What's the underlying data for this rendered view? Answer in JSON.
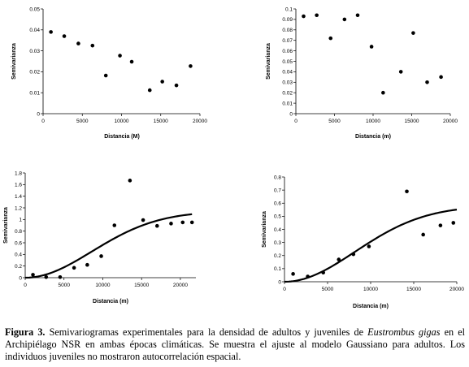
{
  "chart_data": [
    {
      "type": "scatter",
      "xlabel": "Distancia (M)",
      "ylabel": "Semivarianza",
      "xlim": [
        0,
        20000
      ],
      "ylim": [
        0,
        0.05
      ],
      "xticks": [
        "0",
        "5000",
        "10000",
        "15000",
        "20000"
      ],
      "yticks": [
        "0",
        "0.01",
        "0.02",
        "0.03",
        "0.04",
        "0.05"
      ],
      "points": [
        [
          1000,
          0.039
        ],
        [
          2700,
          0.037
        ],
        [
          4500,
          0.0335
        ],
        [
          6300,
          0.0325
        ],
        [
          8000,
          0.0182
        ],
        [
          9800,
          0.0277
        ],
        [
          11300,
          0.0248
        ],
        [
          13600,
          0.0112
        ],
        [
          15200,
          0.0153
        ],
        [
          17000,
          0.0135
        ],
        [
          18800,
          0.0227
        ]
      ]
    },
    {
      "type": "scatter",
      "xlabel": "Distancia (m)",
      "ylabel": "Semivarianza",
      "xlim": [
        0,
        20000
      ],
      "ylim": [
        0,
        0.1
      ],
      "xticks": [
        "0",
        "5000",
        "10000",
        "15000",
        "20000"
      ],
      "yticks": [
        "0",
        "0.01",
        "0.02",
        "0.03",
        "0.04",
        "0.05",
        "0.06",
        "0.07",
        "0.08",
        "0.09",
        "0.1"
      ],
      "points": [
        [
          1000,
          0.093
        ],
        [
          2700,
          0.094
        ],
        [
          4500,
          0.072
        ],
        [
          6300,
          0.09
        ],
        [
          8000,
          0.094
        ],
        [
          9800,
          0.064
        ],
        [
          11300,
          0.02
        ],
        [
          13600,
          0.04
        ],
        [
          15200,
          0.077
        ],
        [
          17000,
          0.03
        ],
        [
          18800,
          0.035
        ]
      ]
    },
    {
      "type": "scatter",
      "xlabel": "Distancia (m)",
      "ylabel": "Semivarianza",
      "xlim": [
        0,
        22000
      ],
      "ylim": [
        0,
        1.8
      ],
      "xticks": [
        "0",
        "5000",
        "10000",
        "15000",
        "20000"
      ],
      "yticks": [
        "0",
        "0.2",
        "0.4",
        "0.6",
        "0.8",
        "1",
        "1.2",
        "1.4",
        "1.6",
        "1.8"
      ],
      "points": [
        [
          1000,
          0.05
        ],
        [
          2700,
          0.01
        ],
        [
          4500,
          0.01
        ],
        [
          6300,
          0.17
        ],
        [
          8000,
          0.22
        ],
        [
          9800,
          0.37
        ],
        [
          11500,
          0.9
        ],
        [
          13500,
          1.67
        ],
        [
          15200,
          0.99
        ],
        [
          17000,
          0.89
        ],
        [
          18800,
          0.93
        ],
        [
          20300,
          0.95
        ],
        [
          21500,
          0.95
        ]
      ],
      "fit": {
        "model": "gaussian",
        "sill": 1.14,
        "range_xmax": 21000,
        "x_max": 21500
      }
    },
    {
      "type": "scatter",
      "xlabel": "Distancia (m)",
      "ylabel": "Semivarianza",
      "xlim": [
        0,
        20000
      ],
      "ylim": [
        0,
        0.8
      ],
      "xticks": [
        "0",
        "5000",
        "10000",
        "15000",
        "20000"
      ],
      "yticks": [
        "0",
        "0.1",
        "0.2",
        "0.3",
        "0.4",
        "0.5",
        "0.6",
        "0.7",
        "0.8"
      ],
      "points": [
        [
          1000,
          0.06
        ],
        [
          2700,
          0.04
        ],
        [
          4500,
          0.07
        ],
        [
          6300,
          0.17
        ],
        [
          8000,
          0.21
        ],
        [
          9800,
          0.27
        ],
        [
          14200,
          0.69
        ],
        [
          16100,
          0.36
        ],
        [
          18100,
          0.43
        ],
        [
          19600,
          0.45
        ]
      ],
      "fit": {
        "model": "gaussian",
        "sill": 0.58,
        "range_xmax": 20000,
        "x_max": 20000
      }
    }
  ],
  "caption": {
    "label": "Figura 3.",
    "text1": " Semivariogramas experimentales para la densidad de adultos y juveniles de ",
    "species": "Eustrombus gigas",
    "text2": " en el Archipiélago NSR en ambas épocas climáticas. Se muestra el ajuste al modelo Gaussiano para adultos. Los individuos juveniles no mostraron autocorrelación espacial."
  }
}
